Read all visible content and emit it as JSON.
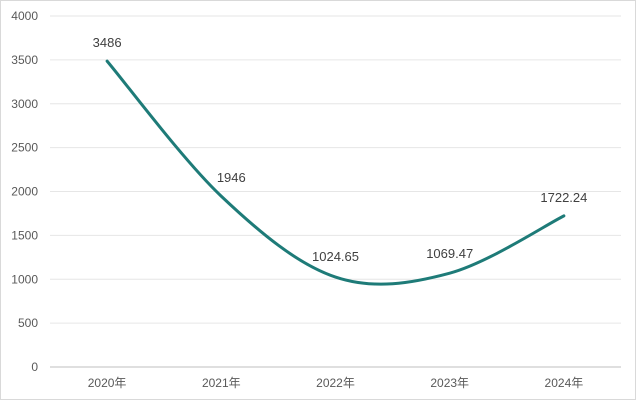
{
  "chart_data": {
    "type": "line",
    "categories": [
      "2020年",
      "2021年",
      "2022年",
      "2023年",
      "2024年"
    ],
    "series": [
      {
        "values": [
          3486,
          1946,
          1024.65,
          1069.47,
          1722.24
        ]
      }
    ],
    "data_labels": [
      "3486",
      "1946",
      "1024.65",
      "1069.47",
      "1722.24"
    ],
    "y_ticks": [
      "0",
      "500",
      "1000",
      "1500",
      "2000",
      "2500",
      "3000",
      "3500",
      "4000"
    ],
    "ylim": [
      0,
      4000
    ],
    "smooth": true,
    "grid": true,
    "legend": "none",
    "line_color": "#1e7b78"
  }
}
